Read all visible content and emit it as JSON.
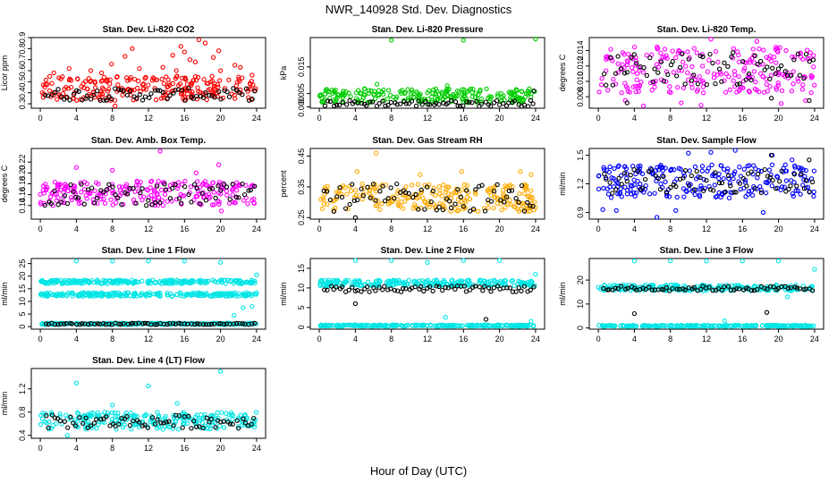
{
  "figure": {
    "title": "NWR_140928 Std. Dev. Diagnostics",
    "xlabel": "Hour of Day (UTC)"
  },
  "colors": {
    "co2": "#ff0000",
    "pressure": "#00cc00",
    "temp": "#ff00ff",
    "boxtemp": "#ff00ff",
    "rh": "#ffaa00",
    "flow": "#0000ff",
    "lines": "#00e5e5",
    "calib": "#000000"
  },
  "chart_data": [
    {
      "type": "scatter",
      "title": "Stan. Dev. Li-820 CO2",
      "ylabel": "Licor ppm",
      "xlim": [
        -1,
        25
      ],
      "ylim": [
        0.26,
        0.9
      ],
      "xticks": [
        "0",
        "4",
        "8",
        "12",
        "16",
        "20",
        "24"
      ],
      "yticks": [
        "0.3",
        "0.4",
        "0.5",
        "0.6",
        "0.7",
        "0.8",
        "0.9"
      ],
      "series": [
        {
          "color_key": "co2",
          "band": [
            0.33,
            0.55
          ],
          "spikes": [
            [
              1.5,
              0.58
            ],
            [
              3.2,
              0.62
            ],
            [
              5.6,
              0.6
            ],
            [
              7.9,
              0.66
            ],
            [
              8.3,
              0.28
            ],
            [
              9.4,
              0.73
            ],
            [
              10.2,
              0.8
            ],
            [
              11.0,
              0.62
            ],
            [
              13.6,
              0.63
            ],
            [
              14.7,
              0.74
            ],
            [
              15.1,
              0.6
            ],
            [
              15.6,
              0.82
            ],
            [
              16.0,
              0.77
            ],
            [
              16.6,
              0.7
            ],
            [
              17.2,
              0.68
            ],
            [
              17.6,
              0.88
            ],
            [
              18.3,
              0.85
            ],
            [
              19.2,
              0.72
            ],
            [
              20.0,
              0.6
            ],
            [
              21.6,
              0.65
            ],
            [
              22.2,
              0.63
            ],
            [
              23.5,
              0.56
            ],
            [
              6.8,
              0.58
            ],
            [
              19.8,
              0.78
            ]
          ]
        },
        {
          "color_key": "calib",
          "band": [
            0.33,
            0.44
          ],
          "spikes": []
        }
      ]
    },
    {
      "type": "scatter",
      "title": "Stan. Dev. Li-820 Pressure",
      "ylabel": "kPa",
      "xlim": [
        -1,
        25
      ],
      "ylim": [
        -0.0005,
        0.026
      ],
      "xticks": [
        "0",
        "4",
        "8",
        "12",
        "16",
        "20",
        "24"
      ],
      "yticks": [
        "0.000",
        "0.005",
        "0.015"
      ],
      "series": [
        {
          "color_key": "pressure",
          "band": [
            0.0015,
            0.007
          ],
          "spikes": [
            [
              8.0,
              0.025
            ],
            [
              16.0,
              0.025
            ],
            [
              24.0,
              0.0255
            ],
            [
              6.4,
              0.0085
            ],
            [
              14.2,
              0.008
            ]
          ]
        },
        {
          "color_key": "calib",
          "band": [
            0.0002,
            0.0025
          ],
          "spikes": [
            [
              23.8,
              0.006
            ]
          ]
        }
      ]
    },
    {
      "type": "scatter",
      "title": "Stan. Dev. Li-820 Temp.",
      "ylabel": "degrees C",
      "xlim": [
        -1,
        25
      ],
      "ylim": [
        0.0065,
        0.0157
      ],
      "xticks": [
        "0",
        "4",
        "8",
        "12",
        "16",
        "20",
        "24"
      ],
      "yticks": [
        "0.008",
        "0.010",
        "0.012",
        "0.014"
      ],
      "series": [
        {
          "color_key": "temp",
          "band": [
            0.0085,
            0.0145
          ],
          "spikes": [
            [
              5.0,
              0.0068
            ],
            [
              9.2,
              0.0072
            ],
            [
              11.4,
              0.0069
            ],
            [
              12.5,
              0.0155
            ],
            [
              17.6,
              0.0152
            ],
            [
              20.3,
              0.0071
            ],
            [
              23.0,
              0.0075
            ],
            [
              3.0,
              0.0075
            ]
          ]
        },
        {
          "color_key": "calib",
          "band": [
            0.0095,
            0.0138
          ],
          "spikes": [
            [
              3.2,
              0.0072
            ],
            [
              19.2,
              0.0078
            ],
            [
              23.4,
              0.0075
            ]
          ]
        }
      ]
    },
    {
      "type": "scatter",
      "title": "Stan. Dev. Amb. Box Temp.",
      "ylabel": "degrees C",
      "xlim": [
        -1,
        25
      ],
      "ylim": [
        0.115,
        0.245
      ],
      "xticks": [
        "0",
        "4",
        "8",
        "12",
        "16",
        "20",
        "24"
      ],
      "yticks": [
        "0.14",
        "0.16",
        "0.18",
        "0.20",
        "0.22"
      ],
      "series": [
        {
          "color_key": "boxtemp",
          "band": [
            0.14,
            0.185
          ],
          "spikes": [
            [
              13.3,
              0.24
            ],
            [
              4.0,
              0.21
            ],
            [
              19.8,
              0.215
            ],
            [
              20.1,
              0.13
            ],
            [
              8.0,
              0.205
            ],
            [
              17.3,
              0.2
            ]
          ]
        },
        {
          "color_key": "calib",
          "band": [
            0.14,
            0.18
          ],
          "spikes": []
        }
      ]
    },
    {
      "type": "scatter",
      "title": "Stan. Dev. Gas Stream RH",
      "ylabel": "percent",
      "xlim": [
        -1,
        25
      ],
      "ylim": [
        0.245,
        0.475
      ],
      "xticks": [
        "0",
        "4",
        "8",
        "12",
        "16",
        "20",
        "24"
      ],
      "yticks": [
        "0.25",
        "0.35",
        "0.45"
      ],
      "series": [
        {
          "color_key": "rh",
          "band": [
            0.27,
            0.36
          ],
          "spikes": [
            [
              6.3,
              0.46
            ],
            [
              4.2,
              0.4
            ],
            [
              15.8,
              0.4
            ],
            [
              11.2,
              0.39
            ],
            [
              22.3,
              0.4
            ],
            [
              23.5,
              0.39
            ]
          ]
        },
        {
          "color_key": "calib",
          "band": [
            0.27,
            0.36
          ],
          "spikes": [
            [
              4.0,
              0.25
            ]
          ]
        }
      ]
    },
    {
      "type": "scatter",
      "title": "Stan. Dev. Sample Flow",
      "ylabel": "ml/min",
      "xlim": [
        -1,
        25
      ],
      "ylim": [
        0.83,
        1.57
      ],
      "xticks": [
        "0",
        "4",
        "8",
        "12",
        "16",
        "20",
        "24"
      ],
      "yticks": [
        "0.9",
        "1.2",
        "1.5"
      ],
      "series": [
        {
          "color_key": "flow",
          "band": [
            1.05,
            1.4
          ],
          "spikes": [
            [
              0.5,
              0.93
            ],
            [
              2.0,
              0.92
            ],
            [
              6.5,
              0.85
            ],
            [
              10.0,
              1.52
            ],
            [
              12.5,
              1.53
            ],
            [
              15.2,
              1.55
            ],
            [
              19.3,
              1.5
            ],
            [
              21.5,
              1.45
            ],
            [
              8.6,
              0.92
            ],
            [
              18.3,
              0.9
            ]
          ]
        },
        {
          "color_key": "calib",
          "band": [
            1.1,
            1.35
          ],
          "spikes": [
            [
              19.2,
              1.5
            ],
            [
              23.4,
              1.45
            ]
          ]
        }
      ]
    },
    {
      "type": "scatter",
      "title": "Stan. Dev. Line 1 Flow",
      "ylabel": "ml/min",
      "xlim": [
        -1,
        25
      ],
      "ylim": [
        -1,
        27
      ],
      "xticks": [
        "0",
        "4",
        "8",
        "12",
        "16",
        "20",
        "24"
      ],
      "yticks": [
        "0",
        "5",
        "10",
        "15",
        "20",
        "25"
      ],
      "series": [
        {
          "color_key": "lines",
          "band": [
            17,
            18.5
          ],
          "spikes": [
            [
              4.0,
              26
            ],
            [
              8.0,
              26
            ],
            [
              12.0,
              26
            ],
            [
              16.0,
              26
            ],
            [
              20.0,
              25.5
            ],
            [
              24.0,
              20.5
            ]
          ]
        },
        {
          "color_key": "lines",
          "band": [
            12,
            13.5
          ],
          "spikes": [
            [
              21.5,
              4.5
            ],
            [
              22.5,
              7.5
            ],
            [
              23.5,
              8
            ]
          ]
        },
        {
          "color_key": "lines",
          "band": [
            0.8,
            1.4
          ],
          "spikes": []
        },
        {
          "color_key": "calib",
          "band": [
            0.8,
            1.4
          ],
          "spikes": []
        }
      ]
    },
    {
      "type": "scatter",
      "title": "Stan. Dev. Line 2 Flow",
      "ylabel": "ml/min",
      "xlim": [
        -1,
        25
      ],
      "ylim": [
        -0.5,
        17.5
      ],
      "xticks": [
        "0",
        "4",
        "8",
        "12",
        "16",
        "20",
        "24"
      ],
      "yticks": [
        "0",
        "5",
        "10",
        "15"
      ],
      "series": [
        {
          "color_key": "lines",
          "band": [
            10.5,
            12
          ],
          "spikes": [
            [
              4.0,
              17
            ],
            [
              8.0,
              17
            ],
            [
              12.0,
              16.5
            ],
            [
              16.0,
              17
            ],
            [
              20.0,
              17
            ],
            [
              24.0,
              13.5
            ],
            [
              14.0,
              2.5
            ],
            [
              23.5,
              1.5
            ]
          ]
        },
        {
          "color_key": "lines",
          "band": [
            0.2,
            0.6
          ],
          "spikes": []
        },
        {
          "color_key": "calib",
          "band": [
            9,
            10.5
          ],
          "spikes": [
            [
              4.0,
              6
            ],
            [
              18.5,
              2
            ]
          ]
        }
      ]
    },
    {
      "type": "scatter",
      "title": "Stan. Dev. Line 3 Flow",
      "ylabel": "ml/min",
      "xlim": [
        -1,
        25
      ],
      "ylim": [
        -0.5,
        29
      ],
      "xticks": [
        "0",
        "4",
        "8",
        "12",
        "16",
        "20",
        "24"
      ],
      "yticks": [
        "0",
        "10",
        "20"
      ],
      "series": [
        {
          "color_key": "lines",
          "band": [
            15.5,
            18
          ],
          "spikes": [
            [
              4.0,
              28
            ],
            [
              8.0,
              28
            ],
            [
              12.0,
              28
            ],
            [
              16.0,
              28
            ],
            [
              20.0,
              28
            ],
            [
              24.0,
              24.5
            ],
            [
              14.0,
              3
            ],
            [
              21.0,
              13
            ]
          ]
        },
        {
          "color_key": "lines",
          "band": [
            0.6,
            1.2
          ],
          "spikes": []
        },
        {
          "color_key": "calib",
          "band": [
            15.5,
            17.5
          ],
          "spikes": [
            [
              4.0,
              6
            ],
            [
              18.7,
              6.5
            ]
          ]
        }
      ]
    },
    {
      "type": "scatter",
      "title": "Stan. Dev. Line 4 (LT) Flow",
      "ylabel": "ml/min",
      "xlim": [
        -1,
        25
      ],
      "ylim": [
        0.35,
        1.55
      ],
      "xticks": [
        "0",
        "4",
        "8",
        "12",
        "16",
        "20",
        "24"
      ],
      "yticks": [
        "0.4",
        "0.8",
        "1.2"
      ],
      "series": [
        {
          "color_key": "lines",
          "band": [
            0.5,
            0.8
          ],
          "spikes": [
            [
              4.0,
              1.3
            ],
            [
              12.0,
              1.25
            ],
            [
              20.0,
              1.5
            ],
            [
              3.0,
              0.4
            ],
            [
              15.2,
              0.95
            ],
            [
              8.0,
              0.92
            ]
          ]
        },
        {
          "color_key": "calib",
          "band": [
            0.52,
            0.75
          ],
          "spikes": []
        }
      ]
    }
  ]
}
